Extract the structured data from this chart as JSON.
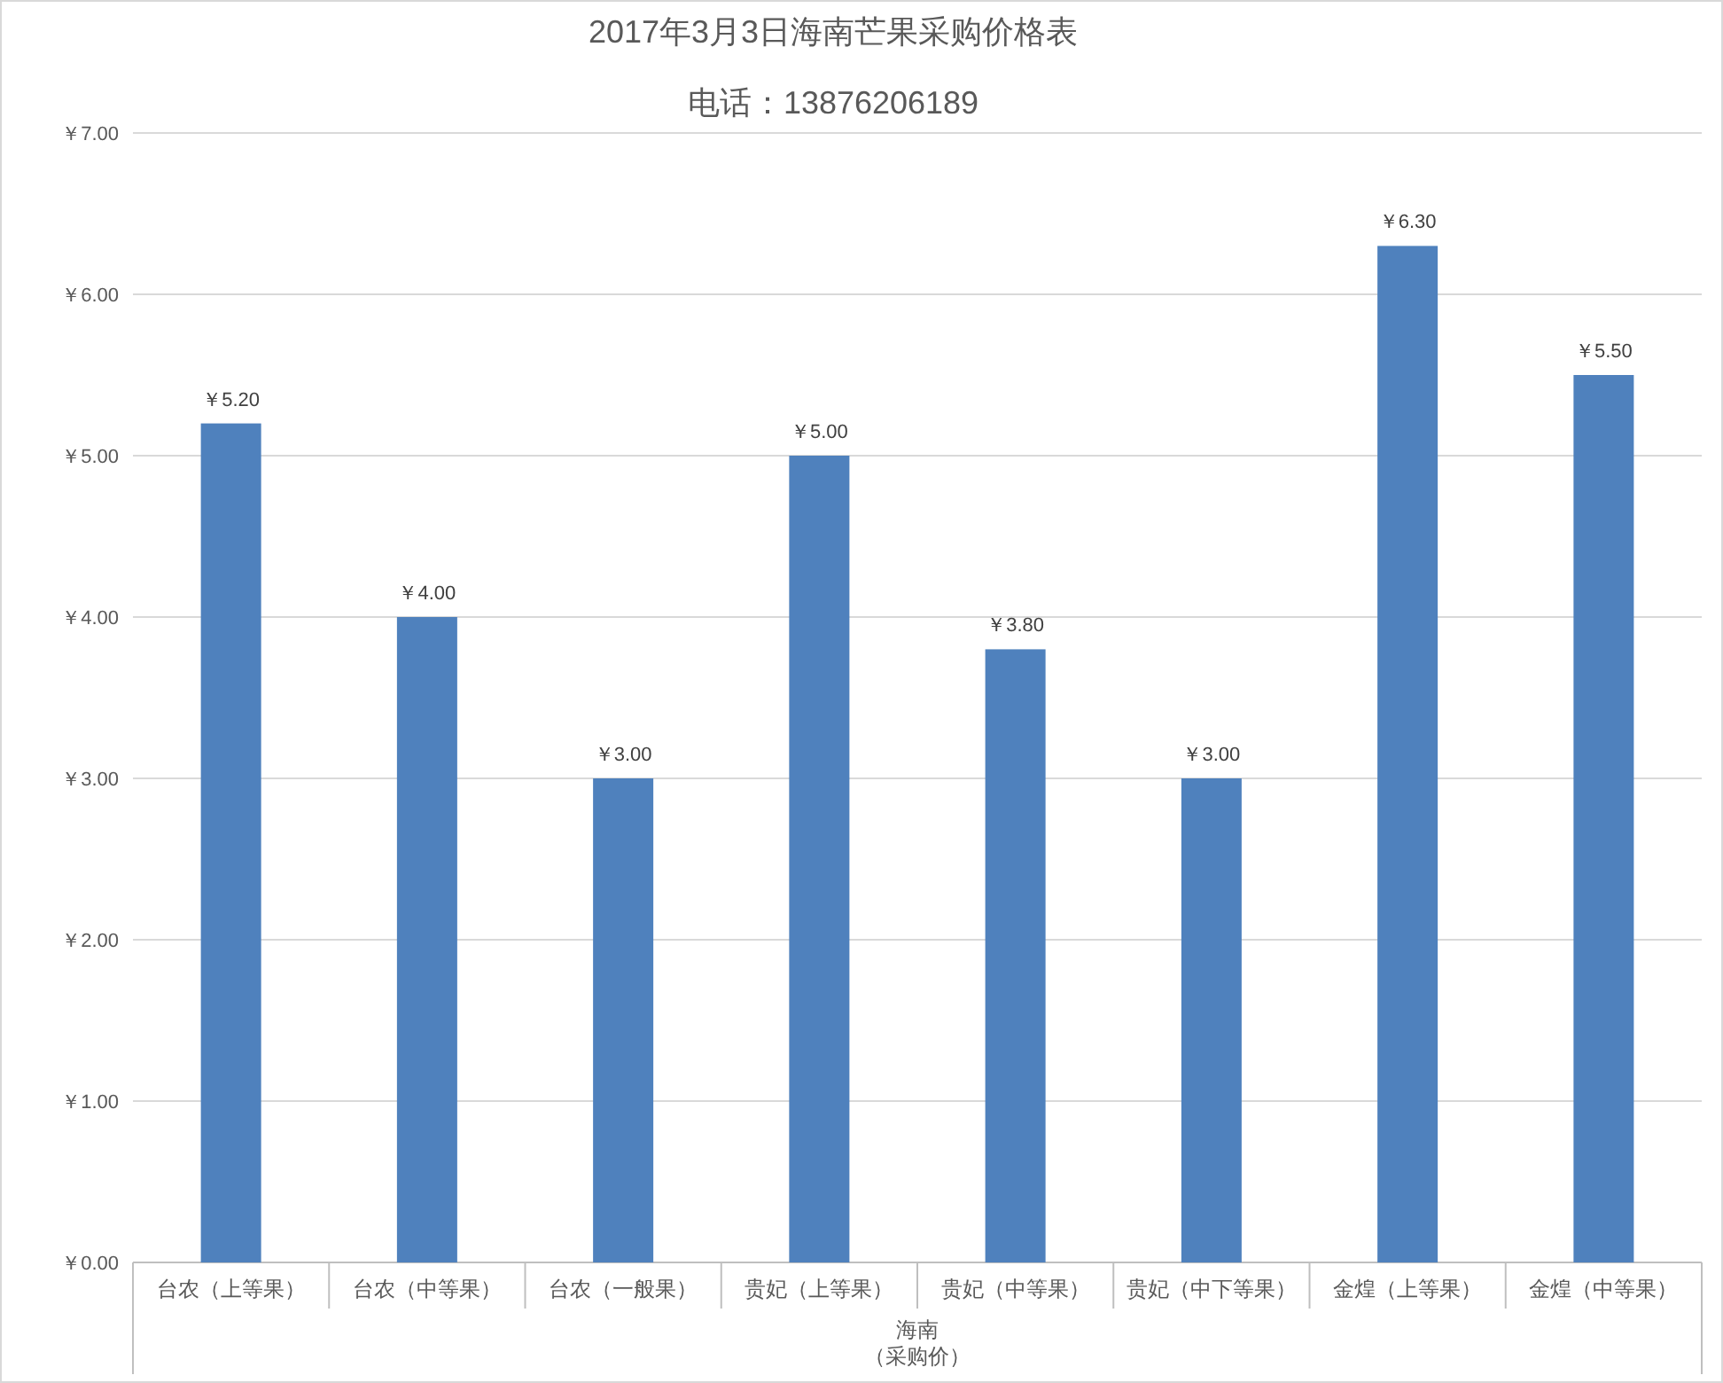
{
  "chart_data": {
    "type": "bar",
    "title": "2017年3月3日海南芒果采购价格表",
    "subtitle": "电话：13876206189",
    "xlabel": "海南",
    "annotations": [
      "（采购价）"
    ],
    "categories": [
      "台农（上等果）",
      "台农（中等果）",
      "台农（一般果）",
      "贵妃（上等果）",
      "贵妃（中等果）",
      "贵妃（中下等果）",
      "金煌（上等果）",
      "金煌（中等果）"
    ],
    "values": [
      5.2,
      4.0,
      3.0,
      5.0,
      3.8,
      3.0,
      6.3,
      5.5
    ],
    "value_labels": [
      "￥5.20",
      "￥4.00",
      "￥3.00",
      "￥5.00",
      "￥3.80",
      "￥3.00",
      "￥6.30",
      "￥5.50"
    ],
    "color": "#4f81bd",
    "ylim": [
      0,
      7
    ],
    "yticks": [
      {
        "value": 0,
        "label": "￥0.00"
      },
      {
        "value": 1,
        "label": "￥1.00"
      },
      {
        "value": 2,
        "label": "￥2.00"
      },
      {
        "value": 3,
        "label": "￥3.00"
      },
      {
        "value": 4,
        "label": "￥4.00"
      },
      {
        "value": 5,
        "label": "￥5.00"
      },
      {
        "value": 6,
        "label": "￥6.00"
      },
      {
        "value": 7,
        "label": "￥7.00"
      }
    ],
    "grid": "y"
  }
}
